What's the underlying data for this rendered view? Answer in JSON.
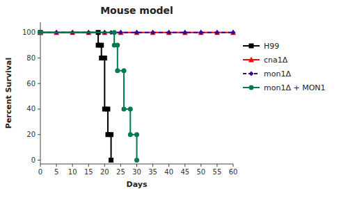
{
  "chart_data": {
    "type": "line",
    "title": "Mouse model",
    "x_label": "Days",
    "y_label": "Percent Survival",
    "xlim": [
      0,
      60
    ],
    "ylim": [
      -3,
      108
    ],
    "xticks": [
      0,
      5,
      10,
      15,
      20,
      25,
      30,
      35,
      40,
      45,
      50,
      55,
      60
    ],
    "yticks": [
      0,
      20,
      40,
      60,
      80,
      100
    ],
    "grid": false,
    "legend": "right",
    "series": [
      {
        "name": "H99",
        "color": "#000000",
        "marker": "square",
        "line_style": "solid",
        "x": [
          0,
          18,
          18,
          19,
          19,
          20,
          20,
          21,
          21,
          22,
          22
        ],
        "values": [
          100,
          100,
          90,
          90,
          80,
          80,
          40,
          40,
          20,
          20,
          0
        ]
      },
      {
        "name": "cna1Δ",
        "color": "#FF0000",
        "marker": "triangle",
        "line_style": "solid",
        "x": [
          0,
          5,
          10,
          15,
          20,
          25,
          30,
          35,
          40,
          45,
          50,
          55,
          60
        ],
        "values": [
          100,
          100,
          100,
          100,
          100,
          100,
          100,
          100,
          100,
          100,
          100,
          100,
          100
        ]
      },
      {
        "name": "mon1Δ",
        "color": "#3D0099",
        "marker": "diamond",
        "line_style": "dashed",
        "x": [
          0,
          5,
          10,
          15,
          20,
          22,
          25,
          30,
          35,
          40,
          45,
          50,
          55,
          60
        ],
        "values": [
          100,
          100,
          100,
          100,
          100,
          100,
          100,
          100,
          100,
          100,
          100,
          100,
          100,
          100
        ]
      },
      {
        "name": "mon1Δ + MON1",
        "color": "#007B50",
        "marker": "circle",
        "line_style": "solid",
        "x": [
          0,
          23,
          23,
          24,
          24,
          26,
          26,
          28,
          28,
          30,
          30
        ],
        "values": [
          100,
          100,
          90,
          90,
          70,
          70,
          40,
          40,
          20,
          20,
          0
        ]
      }
    ]
  }
}
